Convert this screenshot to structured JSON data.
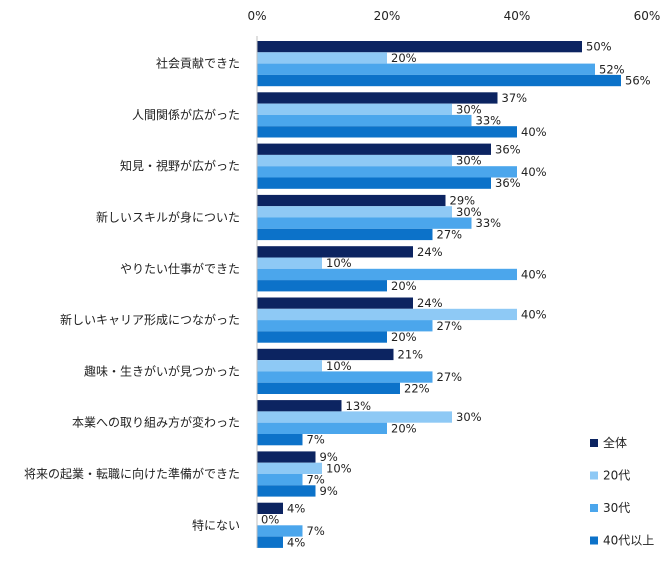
{
  "chart_data": {
    "type": "bar",
    "orientation": "horizontal",
    "title": "",
    "xlabel": "",
    "ylabel": "",
    "xlim": [
      0,
      60
    ],
    "x_ticks": [
      0,
      20,
      40,
      60
    ],
    "x_tick_labels": [
      "0%",
      "20%",
      "40%",
      "60%"
    ],
    "value_suffix": "%",
    "grid": false,
    "legend_position": "bottom-right",
    "categories": [
      "社会貢献できた",
      "人間関係が広がった",
      "知見・視野が広がった",
      "新しいスキルが身についた",
      "やりたい仕事ができた",
      "新しいキャリア形成につながった",
      "趣味・生きがいが見つかった",
      "本業への取り組み方が変わった",
      "将来の起業・転職に向けた準備ができた",
      "特にない"
    ],
    "series": [
      {
        "name": "全体",
        "color": "#0c2461",
        "values": [
          50,
          37,
          36,
          29,
          24,
          24,
          21,
          13,
          9,
          4
        ]
      },
      {
        "name": "20代",
        "color": "#8ec9f5",
        "values": [
          20,
          30,
          30,
          30,
          10,
          40,
          10,
          30,
          10,
          0
        ]
      },
      {
        "name": "30代",
        "color": "#4ba6ec",
        "values": [
          52,
          33,
          40,
          33,
          40,
          27,
          27,
          20,
          7,
          7
        ]
      },
      {
        "name": "40代以上",
        "color": "#0c72c9",
        "values": [
          56,
          40,
          36,
          27,
          20,
          20,
          22,
          7,
          9,
          4
        ]
      }
    ]
  }
}
